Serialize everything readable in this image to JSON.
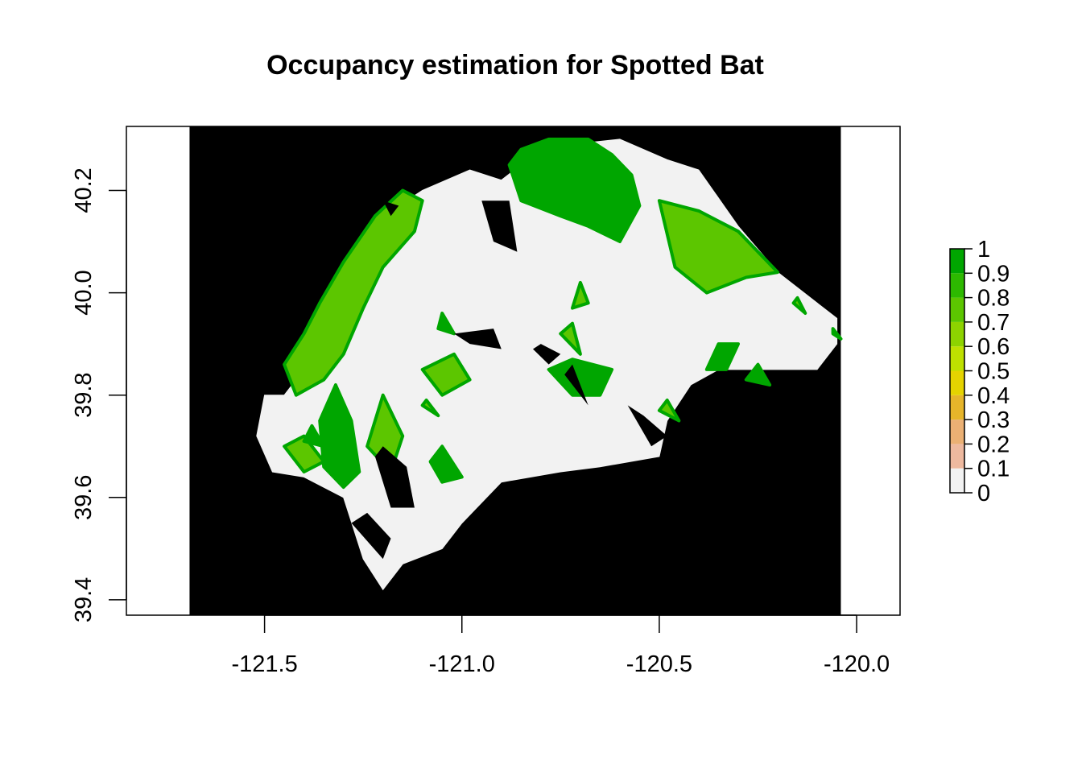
{
  "chart_data": {
    "type": "heatmap",
    "title": "Occupancy estimation for Spotted Bat",
    "xlabel": "",
    "ylabel": "",
    "xlim": [
      -121.85,
      -119.89
    ],
    "ylim": [
      39.37,
      40.325
    ],
    "x_ticks": [
      -121.5,
      -121.0,
      -120.5,
      -120.0
    ],
    "x_tick_labels": [
      "-121.5",
      "-121.0",
      "-120.5",
      "-120.0"
    ],
    "y_ticks": [
      39.4,
      39.6,
      39.8,
      40.0,
      40.2
    ],
    "y_tick_labels": [
      "39.4",
      "39.6",
      "39.8",
      "40.0",
      "40.2"
    ],
    "raster_extent": {
      "xmin": -121.69,
      "xmax": -120.04,
      "ymin": 39.37,
      "ymax": 40.325
    },
    "background_value_color": "#000000",
    "study_area_value": 0,
    "high_occupancy_value": 1,
    "legend": {
      "breaks": [
        0,
        0.1,
        0.2,
        0.3,
        0.4,
        0.5,
        0.6,
        0.7,
        0.8,
        0.9,
        1
      ],
      "labels": [
        "0",
        "0.1",
        "0.2",
        "0.3",
        "0.4",
        "0.5",
        "0.6",
        "0.7",
        "0.8",
        "0.9",
        "1"
      ],
      "colors": [
        "#F2F2F2",
        "#F2D3CB",
        "#EEB99F",
        "#EBB074",
        "#E6B52A",
        "#E5D300",
        "#BEE000",
        "#8DD300",
        "#5CC600",
        "#2DB900",
        "#00A600"
      ]
    },
    "regions": {
      "study_area": [
        [
          -121.45,
          39.8
        ],
        [
          -121.35,
          39.9
        ],
        [
          -121.3,
          40.05
        ],
        [
          -121.2,
          40.15
        ],
        [
          -121.1,
          40.2
        ],
        [
          -120.98,
          40.24
        ],
        [
          -120.9,
          40.22
        ],
        [
          -120.85,
          40.25
        ],
        [
          -120.72,
          40.29
        ],
        [
          -120.6,
          40.3
        ],
        [
          -120.48,
          40.26
        ],
        [
          -120.4,
          40.24
        ],
        [
          -120.3,
          40.13
        ],
        [
          -120.2,
          40.04
        ],
        [
          -120.1,
          39.98
        ],
        [
          -120.05,
          39.95
        ],
        [
          -120.05,
          39.9
        ],
        [
          -120.1,
          39.85
        ],
        [
          -120.2,
          39.85
        ],
        [
          -120.35,
          39.85
        ],
        [
          -120.42,
          39.82
        ],
        [
          -120.48,
          39.75
        ],
        [
          -120.5,
          39.68
        ],
        [
          -120.65,
          39.66
        ],
        [
          -120.75,
          39.65
        ],
        [
          -120.9,
          39.63
        ],
        [
          -121.0,
          39.55
        ],
        [
          -121.05,
          39.5
        ],
        [
          -121.15,
          39.47
        ],
        [
          -121.2,
          39.42
        ],
        [
          -121.25,
          39.48
        ],
        [
          -121.3,
          39.6
        ],
        [
          -121.4,
          39.64
        ],
        [
          -121.48,
          39.65
        ],
        [
          -121.52,
          39.72
        ],
        [
          -121.5,
          39.8
        ]
      ],
      "green_patches": [
        [
          [
            -121.45,
            39.86
          ],
          [
            -121.4,
            39.92
          ],
          [
            -121.36,
            39.98
          ],
          [
            -121.3,
            40.06
          ],
          [
            -121.22,
            40.15
          ],
          [
            -121.15,
            40.2
          ],
          [
            -121.1,
            40.18
          ],
          [
            -121.12,
            40.12
          ],
          [
            -121.2,
            40.05
          ],
          [
            -121.25,
            39.97
          ],
          [
            -121.3,
            39.88
          ],
          [
            -121.35,
            39.83
          ],
          [
            -121.42,
            39.8
          ]
        ],
        [
          [
            -120.88,
            40.25
          ],
          [
            -120.85,
            40.28
          ],
          [
            -120.78,
            40.3
          ],
          [
            -120.68,
            40.3
          ],
          [
            -120.62,
            40.27
          ],
          [
            -120.57,
            40.23
          ],
          [
            -120.55,
            40.17
          ],
          [
            -120.6,
            40.1
          ],
          [
            -120.68,
            40.13
          ],
          [
            -120.75,
            40.15
          ],
          [
            -120.85,
            40.18
          ]
        ],
        [
          [
            -120.5,
            40.18
          ],
          [
            -120.4,
            40.16
          ],
          [
            -120.3,
            40.12
          ],
          [
            -120.2,
            40.04
          ],
          [
            -120.28,
            40.03
          ],
          [
            -120.38,
            40.0
          ],
          [
            -120.46,
            40.05
          ]
        ],
        [
          [
            -121.32,
            39.82
          ],
          [
            -121.28,
            39.75
          ],
          [
            -121.26,
            39.65
          ],
          [
            -121.3,
            39.62
          ],
          [
            -121.35,
            39.66
          ],
          [
            -121.36,
            39.75
          ]
        ],
        [
          [
            -121.2,
            39.8
          ],
          [
            -121.15,
            39.72
          ],
          [
            -121.18,
            39.65
          ],
          [
            -121.24,
            39.7
          ]
        ],
        [
          [
            -120.3,
            39.9
          ],
          [
            -120.33,
            39.85
          ],
          [
            -120.38,
            39.85
          ],
          [
            -120.35,
            39.9
          ]
        ],
        [
          [
            -121.1,
            39.85
          ],
          [
            -121.05,
            39.8
          ],
          [
            -120.98,
            39.83
          ],
          [
            -121.02,
            39.88
          ]
        ],
        [
          [
            -120.78,
            39.85
          ],
          [
            -120.72,
            39.8
          ],
          [
            -120.65,
            39.8
          ],
          [
            -120.62,
            39.85
          ],
          [
            -120.72,
            39.87
          ]
        ],
        [
          [
            -121.45,
            39.7
          ],
          [
            -121.4,
            39.65
          ],
          [
            -121.35,
            39.67
          ],
          [
            -121.4,
            39.72
          ]
        ],
        [
          [
            -121.05,
            39.7
          ],
          [
            -121.0,
            39.64
          ],
          [
            -121.05,
            39.63
          ],
          [
            -121.08,
            39.67
          ]
        ],
        [
          [
            -120.7,
            40.02
          ],
          [
            -120.68,
            39.98
          ],
          [
            -120.72,
            39.97
          ]
        ],
        [
          [
            -121.05,
            39.96
          ],
          [
            -121.02,
            39.92
          ],
          [
            -121.06,
            39.93
          ]
        ],
        [
          [
            -120.75,
            39.92
          ],
          [
            -120.7,
            39.88
          ],
          [
            -120.72,
            39.94
          ]
        ],
        [
          [
            -120.28,
            39.83
          ],
          [
            -120.22,
            39.82
          ],
          [
            -120.25,
            39.86
          ]
        ],
        [
          [
            -120.5,
            39.77
          ],
          [
            -120.45,
            39.75
          ],
          [
            -120.48,
            39.79
          ]
        ],
        [
          [
            -121.38,
            39.74
          ],
          [
            -121.35,
            39.7
          ],
          [
            -121.4,
            39.71
          ]
        ],
        [
          [
            -121.1,
            39.78
          ],
          [
            -121.06,
            39.76
          ],
          [
            -121.09,
            39.79
          ]
        ],
        [
          [
            -120.06,
            39.93
          ],
          [
            -120.04,
            39.91
          ],
          [
            -120.06,
            39.92
          ]
        ],
        [
          [
            -120.16,
            39.98
          ],
          [
            -120.13,
            39.96
          ],
          [
            -120.15,
            39.99
          ]
        ]
      ],
      "black_holes": [
        [
          [
            -120.95,
            40.18
          ],
          [
            -120.88,
            40.18
          ],
          [
            -120.86,
            40.08
          ],
          [
            -120.92,
            40.1
          ]
        ],
        [
          [
            -121.02,
            39.92
          ],
          [
            -120.98,
            39.9
          ],
          [
            -120.9,
            39.89
          ],
          [
            -120.92,
            39.93
          ]
        ],
        [
          [
            -120.82,
            39.89
          ],
          [
            -120.78,
            39.86
          ],
          [
            -120.75,
            39.88
          ],
          [
            -120.8,
            39.9
          ]
        ],
        [
          [
            -120.72,
            39.86
          ],
          [
            -120.68,
            39.78
          ],
          [
            -120.7,
            39.8
          ],
          [
            -120.74,
            39.84
          ]
        ],
        [
          [
            -120.58,
            39.78
          ],
          [
            -120.52,
            39.7
          ],
          [
            -120.48,
            39.72
          ],
          [
            -120.54,
            39.76
          ]
        ],
        [
          [
            -121.22,
            39.68
          ],
          [
            -121.18,
            39.58
          ],
          [
            -121.12,
            39.58
          ],
          [
            -121.14,
            39.66
          ],
          [
            -121.2,
            39.7
          ]
        ],
        [
          [
            -121.28,
            39.55
          ],
          [
            -121.2,
            39.48
          ],
          [
            -121.18,
            39.52
          ],
          [
            -121.24,
            39.57
          ]
        ],
        [
          [
            -121.2,
            40.18
          ],
          [
            -121.18,
            40.15
          ],
          [
            -121.16,
            40.17
          ]
        ]
      ]
    }
  }
}
